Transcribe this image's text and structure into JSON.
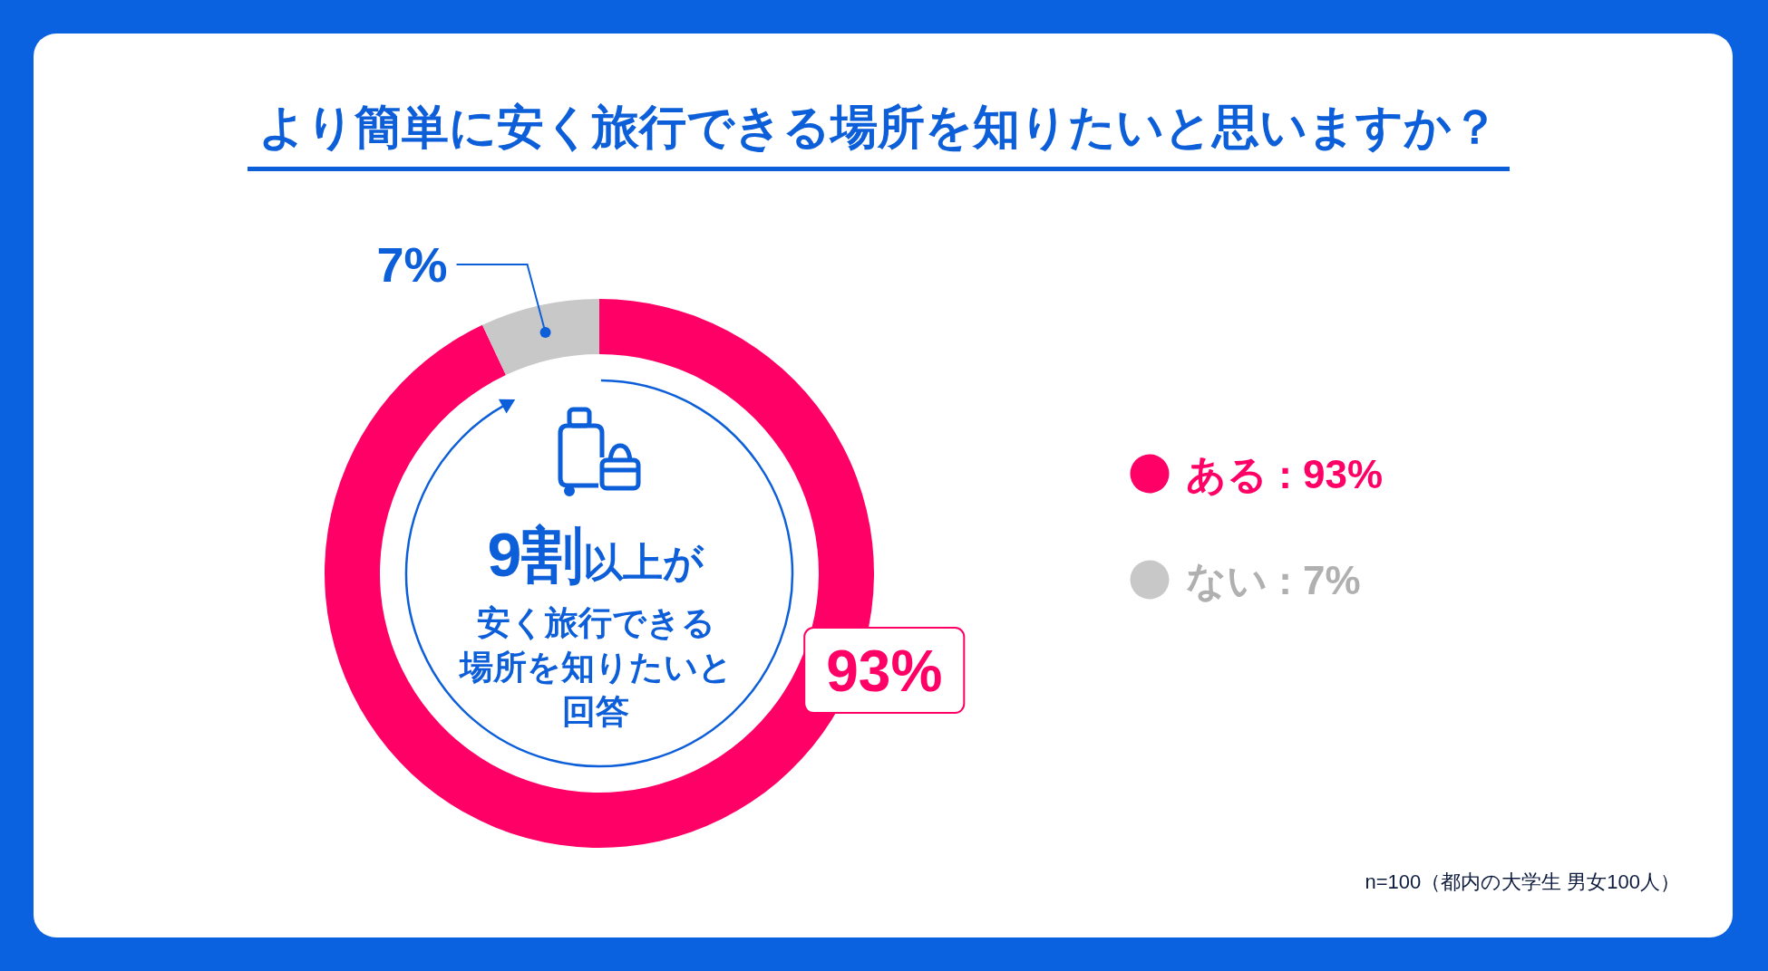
{
  "chart_data": {
    "type": "donut",
    "title": "より簡単に安く旅行できる場所を知りたいと思いますか？",
    "categories": [
      "ある : 93%",
      "ない : 7%"
    ],
    "values": [
      93,
      7
    ],
    "colors": [
      "#ff0066",
      "#c8c8c8"
    ],
    "value_labels": [
      "93%",
      "7%"
    ],
    "legend": "right",
    "annotations": [
      "**9割**以上が",
      "安く旅行できる場所を知りたいと回答",
      "n=100（都内の大学生 男女100人）"
    ]
  }
}
